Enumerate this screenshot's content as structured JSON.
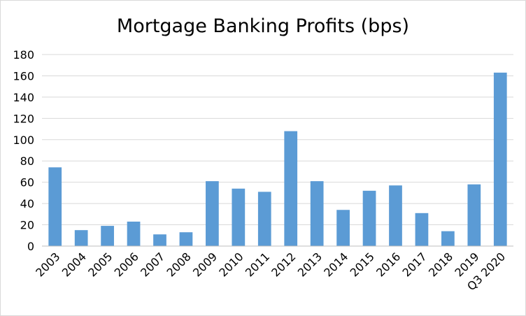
{
  "chart_data": {
    "type": "bar",
    "title": "Mortgage Banking Profits (bps)",
    "xlabel": "",
    "ylabel": "",
    "categories": [
      "2003",
      "2004",
      "2005",
      "2006",
      "2007",
      "2008",
      "2009",
      "2010",
      "2011",
      "2012",
      "2013",
      "2014",
      "2015",
      "2016",
      "2017",
      "2018",
      "2019",
      "Q3 2020"
    ],
    "values": [
      74,
      15,
      19,
      23,
      11,
      13,
      61,
      54,
      51,
      108,
      61,
      34,
      52,
      57,
      31,
      14,
      58,
      163
    ],
    "ylim": [
      0,
      180
    ],
    "yticks": [
      "0",
      "20",
      "40",
      "60",
      "80",
      "100",
      "120",
      "140",
      "160",
      "180"
    ],
    "grid": true,
    "legend": "none",
    "colors": {
      "bar": "#5B9BD5",
      "grid": "#d9d9d9",
      "axis": "#bfbfbf"
    }
  }
}
